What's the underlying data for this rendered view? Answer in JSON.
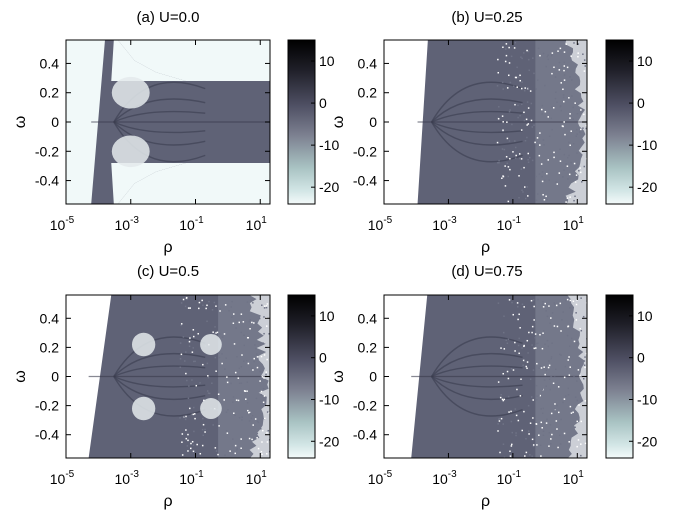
{
  "chart_data": [
    {
      "type": "heatmap",
      "title": "(a)  U=0.0",
      "xlabel": "ρ",
      "ylabel": "ω",
      "x_scale": "log",
      "xlim": [
        1e-05,
        20
      ],
      "ylim": [
        -0.56,
        0.56
      ],
      "x_ticks": [
        {
          "base": "10",
          "exp": "-5",
          "value": 1e-05
        },
        {
          "base": "10",
          "exp": "-3",
          "value": 0.001
        },
        {
          "base": "10",
          "exp": "-1",
          "value": 0.1
        },
        {
          "base": "10",
          "exp": "1",
          "value": 10
        }
      ],
      "y_ticks": [
        "0.4",
        "0.2",
        "0",
        "-0.2",
        "-0.4"
      ],
      "y_tick_values": [
        0.4,
        0.2,
        0,
        -0.2,
        -0.4
      ],
      "colorbar_ticks": [
        "10",
        "0",
        "-10",
        "-20"
      ],
      "colorbar_values": [
        10,
        0,
        -10,
        -20
      ],
      "colorbar_range": [
        -24,
        15
      ],
      "edge_start_rho": 6e-05,
      "edge_end_rho": 0.00016,
      "band_edge_omega": 0.28,
      "roughness": 0.02,
      "holes": [
        [
          0.001,
          0.2,
          0.8,
          0.12
        ],
        [
          0.001,
          -0.2,
          0.8,
          0.12
        ]
      ],
      "gaps": [
        [
          0.00025,
          0.28,
          1e-05,
          0.56
        ],
        [
          0.00025,
          -0.28,
          1e-05,
          -0.56
        ]
      ]
    },
    {
      "type": "heatmap",
      "title": "(b)  U=0.25",
      "xlabel": "ρ",
      "ylabel": "ω",
      "x_scale": "log",
      "xlim": [
        1e-05,
        20
      ],
      "ylim": [
        -0.56,
        0.56
      ],
      "x_ticks": [
        {
          "base": "10",
          "exp": "-5",
          "value": 1e-05
        },
        {
          "base": "10",
          "exp": "-3",
          "value": 0.001
        },
        {
          "base": "10",
          "exp": "-1",
          "value": 0.1
        },
        {
          "base": "10",
          "exp": "1",
          "value": 10
        }
      ],
      "y_ticks": [
        "0.4",
        "0.2",
        "0",
        "-0.2",
        "-0.4"
      ],
      "y_tick_values": [
        0.4,
        0.2,
        0,
        -0.2,
        -0.4
      ],
      "colorbar_ticks": [
        "10",
        "0",
        "-10",
        "-20"
      ],
      "colorbar_values": [
        10,
        0,
        -10,
        -20
      ],
      "colorbar_range": [
        -24,
        15
      ],
      "edge_start_rho": 0.00011,
      "edge_end_rho": 0.00023,
      "roughness": 0.35
    },
    {
      "type": "heatmap",
      "title": "(c)  U=0.5",
      "xlabel": "ρ",
      "ylabel": "ω",
      "x_scale": "log",
      "xlim": [
        1e-05,
        20
      ],
      "ylim": [
        -0.56,
        0.56
      ],
      "x_ticks": [
        {
          "base": "10",
          "exp": "-5",
          "value": 1e-05
        },
        {
          "base": "10",
          "exp": "-3",
          "value": 0.001
        },
        {
          "base": "10",
          "exp": "-1",
          "value": 0.1
        },
        {
          "base": "10",
          "exp": "1",
          "value": 10
        }
      ],
      "y_ticks": [
        "0.4",
        "0.2",
        "0",
        "-0.2",
        "-0.4"
      ],
      "y_tick_values": [
        0.4,
        0.2,
        0,
        -0.2,
        -0.4
      ],
      "colorbar_ticks": [
        "10",
        "0",
        "-10",
        "-20"
      ],
      "colorbar_values": [
        10,
        0,
        -10,
        -20
      ],
      "colorbar_range": [
        -24,
        15
      ],
      "edge_start_rho": 5e-05,
      "edge_end_rho": 0.00025,
      "roughness": 0.4,
      "holes": [
        [
          0.0025,
          0.22,
          0.35,
          0.09
        ],
        [
          0.0025,
          -0.22,
          0.35,
          0.09
        ],
        [
          0.3,
          0.22,
          0.3,
          0.08
        ],
        [
          0.3,
          -0.22,
          0.3,
          0.08
        ]
      ]
    },
    {
      "type": "heatmap",
      "title": "(d)  U=0.75",
      "xlabel": "ρ",
      "ylabel": "ω",
      "x_scale": "log",
      "xlim": [
        1e-05,
        20
      ],
      "ylim": [
        -0.56,
        0.56
      ],
      "x_ticks": [
        {
          "base": "10",
          "exp": "-5",
          "value": 1e-05
        },
        {
          "base": "10",
          "exp": "-3",
          "value": 0.001
        },
        {
          "base": "10",
          "exp": "-1",
          "value": 0.1
        },
        {
          "base": "10",
          "exp": "1",
          "value": 10
        }
      ],
      "y_ticks": [
        "0.4",
        "0.2",
        "0",
        "-0.2",
        "-0.4"
      ],
      "y_tick_values": [
        0.4,
        0.2,
        0,
        -0.2,
        -0.4
      ],
      "colorbar_ticks": [
        "10",
        "0",
        "-10",
        "-20"
      ],
      "colorbar_values": [
        10,
        0,
        -10,
        -20
      ],
      "colorbar_range": [
        -24,
        15
      ],
      "edge_start_rho": 7e-05,
      "edge_end_rho": 0.00022,
      "roughness": 0.28
    }
  ]
}
